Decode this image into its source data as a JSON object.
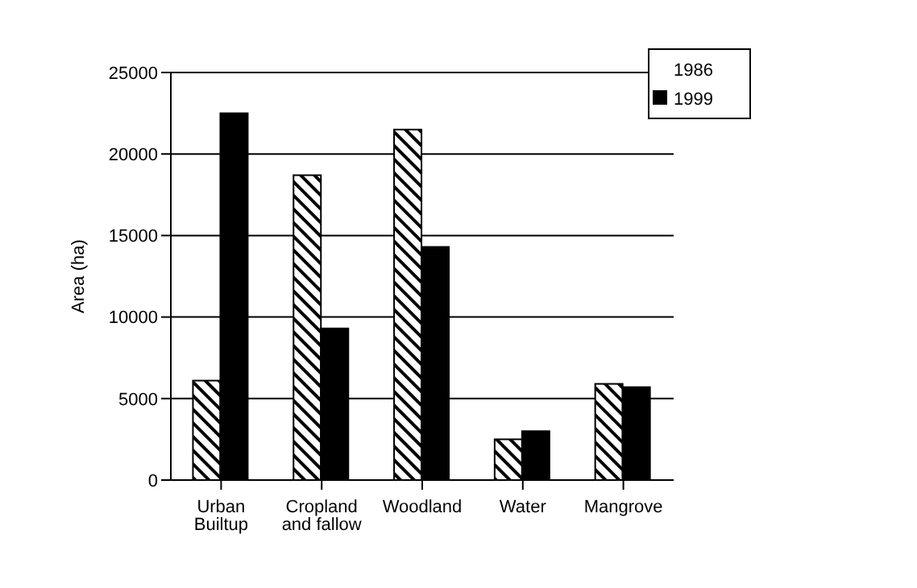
{
  "chart_data": {
    "type": "bar",
    "ylabel": "Area (ha)",
    "categories": [
      "Urban Builtup",
      "Cropland and fallow",
      "Woodland",
      "Water",
      "Mangrove"
    ],
    "series": [
      {
        "name": "1986",
        "color": "#ffffff",
        "values": [
          6100,
          18700,
          21500,
          2500,
          5900
        ]
      },
      {
        "name": "1999",
        "color": "#000000",
        "values": [
          22500,
          9300,
          14300,
          3000,
          5700
        ]
      }
    ],
    "ylim": [
      0,
      25000
    ],
    "yticks": [
      0,
      5000,
      10000,
      15000,
      20000,
      25000
    ],
    "grid": "y",
    "legend": "top right"
  }
}
